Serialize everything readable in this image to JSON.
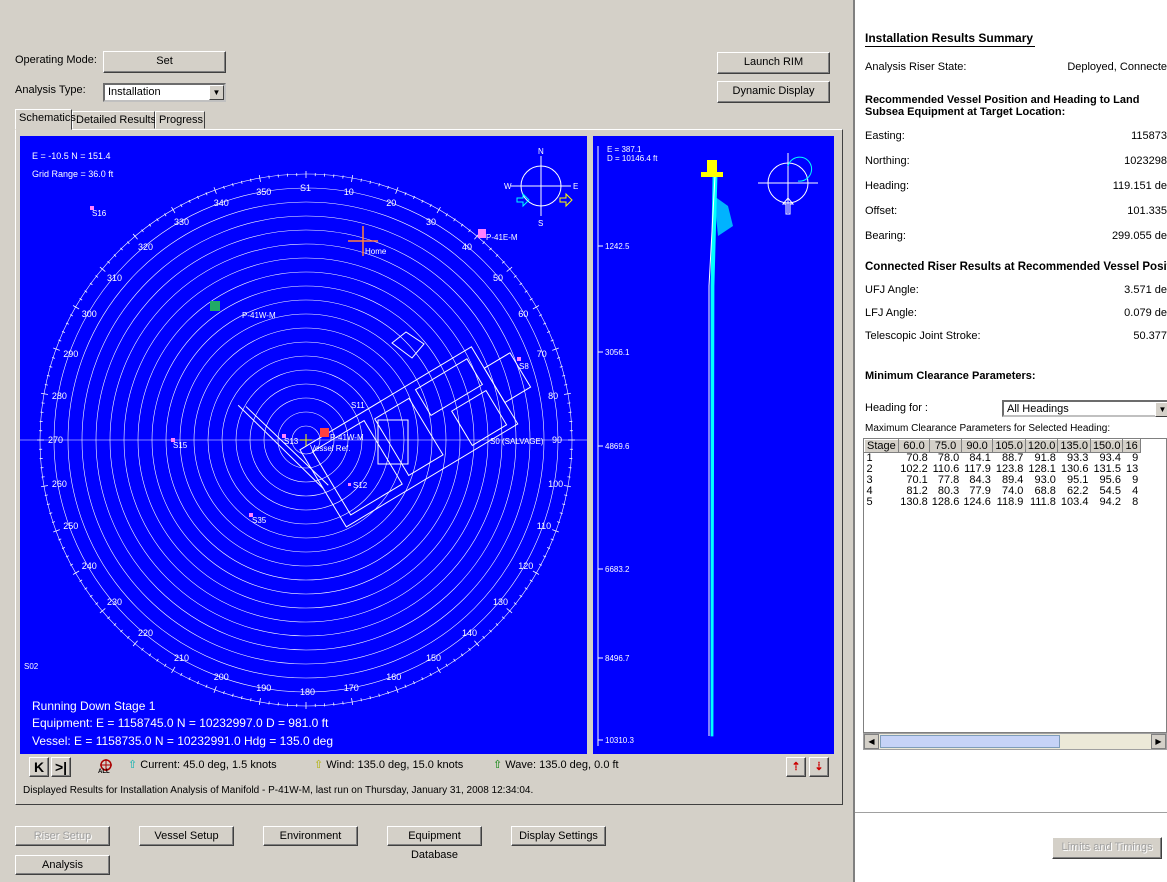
{
  "controls": {
    "operating_mode_label": "Operating Mode:",
    "set_button": "Set",
    "analysis_type_label": "Analysis Type:",
    "analysis_type_value": "Installation",
    "launch_rim_button": "Launch RIM",
    "dynamic_display_button": "Dynamic Display"
  },
  "tabs": [
    "Schematics",
    "Detailed Results",
    "Progress"
  ],
  "plan_view": {
    "coords": "E = -10.5 N = 151.4",
    "grid_range": "Grid Range = 36.0 ft",
    "compass": {
      "n": "N",
      "s": "S",
      "e": "E",
      "w": "W"
    },
    "bearing_labels": [
      "S1",
      "10",
      "20",
      "30",
      "40",
      "50",
      "60",
      "70",
      "80",
      "90",
      "100",
      "110",
      "120",
      "130",
      "140",
      "150",
      "160",
      "170",
      "180",
      "190",
      "200",
      "210",
      "220",
      "230",
      "240",
      "250",
      "260",
      "270",
      "280",
      "290",
      "300",
      "310",
      "320",
      "330",
      "340",
      "350"
    ],
    "markers": {
      "s16": "S16",
      "home": "Home",
      "p41e": "P-41E-M",
      "p41w": "P-41W-M",
      "s8": "S8",
      "s15": "S15",
      "s13": "S13",
      "p41w_center": "P-41W-M",
      "vessel_ref": "Vessel Ref.",
      "s11": "S11",
      "s12": "S12",
      "s0": "S0 (SALVAGE)",
      "s35": "S35",
      "s02": "S02"
    },
    "status": {
      "stage": "Running Down Stage 1",
      "equipment": "Equipment: E = 1158745.0 N = 10232997.0 D = 981.0 ft",
      "vessel": "Vessel: E = 1158735.0 N = 10232991.0 Hdg = 135.0 deg"
    }
  },
  "elevation_view": {
    "coords_e": "E = 387.1",
    "coords_d": "D = 10146.4 ft",
    "depth_ticks": [
      "1242.5",
      "3056.1",
      "4869.6",
      "6683.2",
      "8496.7",
      "10310.3"
    ]
  },
  "env_bar": {
    "current": "Current: 45.0 deg, 1.5 knots",
    "wind": "Wind: 135.0 deg, 15.0 knots",
    "wave": "Wave: 135.0 deg, 0.0 ft",
    "all_label": "ALL"
  },
  "status_message": "Displayed Results for Installation Analysis of Manifold - P-41W-M, last run on Thursday, January 31, 2008 12:34:04.",
  "bottom_buttons": {
    "riser_setup": "Riser Setup",
    "vessel_setup": "Vessel Setup",
    "environment": "Environment",
    "equipment_db": "Equipment Database",
    "display_settings": "Display Settings",
    "analysis": "Analysis"
  },
  "summary": {
    "title": "Installation Results Summary",
    "riser_state_label": "Analysis Riser State:",
    "riser_state_value": "Deployed, Connecte",
    "rec_heading_line1": "Recommended Vessel Position and Heading to Land",
    "rec_heading_line2": "Subsea Equipment at Target Location:",
    "easting_label": "Easting:",
    "easting_value": "115873",
    "northing_label": "Northing:",
    "northing_value": "1023298",
    "heading_label": "Heading:",
    "heading_value": "119.151 de",
    "offset_label": "Offset:",
    "offset_value": "101.335",
    "bearing_label": "Bearing:",
    "bearing_value": "299.055 de",
    "connected_heading": "Connected Riser Results at Recommended Vessel Position",
    "ufj_label": "UFJ Angle:",
    "ufj_value": "3.571 de",
    "lfj_label": "LFJ Angle:",
    "lfj_value": "0.079 de",
    "tj_label": "Telescopic Joint Stroke:",
    "tj_value": "50.377",
    "min_clearance_heading": "Minimum Clearance Parameters:",
    "heading_for_label": "Heading for :",
    "heading_for_value": "All Headings",
    "max_clearance_label": "Maximum Clearance Parameters for Selected Heading:",
    "limits_button": "Limits and Timings"
  },
  "clearance_table": {
    "headers": [
      "Stage",
      "60.0",
      "75.0",
      "90.0",
      "105.0",
      "120.0",
      "135.0",
      "150.0",
      "16"
    ],
    "rows": [
      [
        "1",
        "70.8",
        "78.0",
        "84.1",
        "88.7",
        "91.8",
        "93.3",
        "93.4",
        "9"
      ],
      [
        "2",
        "102.2",
        "110.6",
        "117.9",
        "123.8",
        "128.1",
        "130.6",
        "131.5",
        "13"
      ],
      [
        "3",
        "70.1",
        "77.8",
        "84.3",
        "89.4",
        "93.0",
        "95.1",
        "95.6",
        "9"
      ],
      [
        "4",
        "81.2",
        "80.3",
        "77.9",
        "74.0",
        "68.8",
        "62.2",
        "54.5",
        "4"
      ],
      [
        "5",
        "130.8",
        "128.6",
        "124.6",
        "118.9",
        "111.8",
        "103.4",
        "94.2",
        "8"
      ]
    ]
  }
}
